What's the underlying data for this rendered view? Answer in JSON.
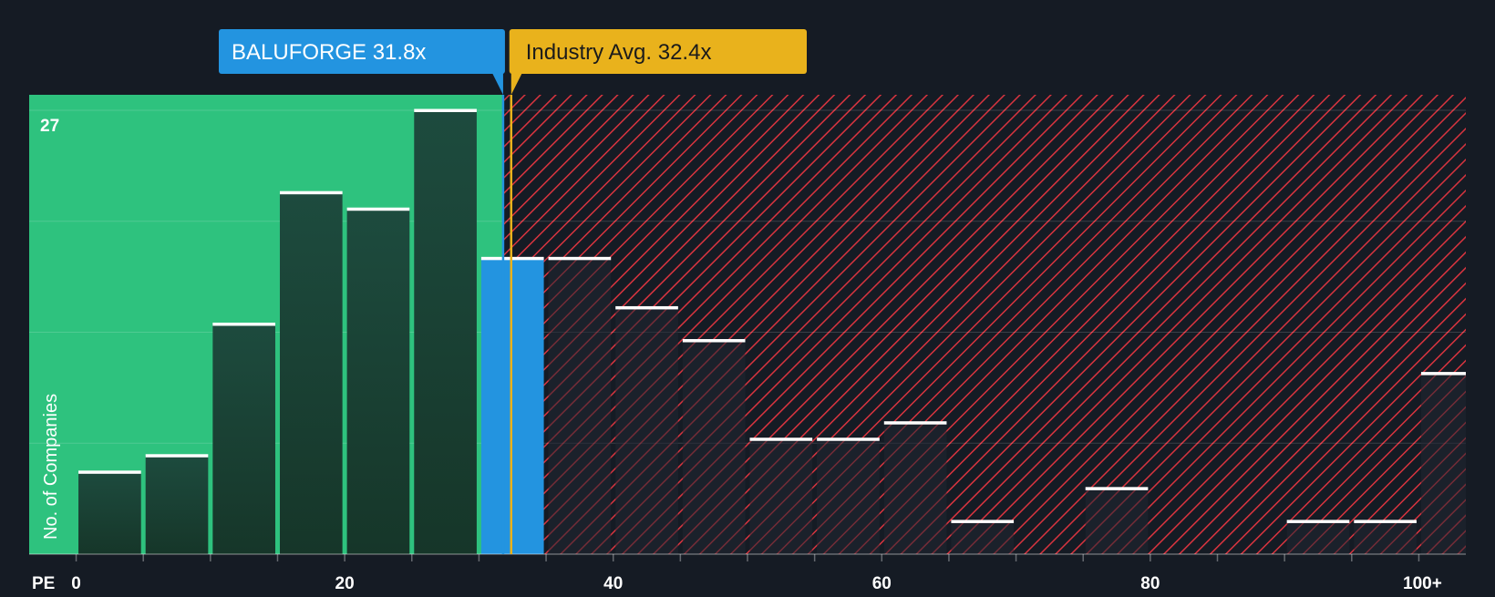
{
  "chart_data": {
    "type": "bar",
    "xlabel": "PE",
    "ylabel": "No. of Companies",
    "x_tick_labels": [
      "0",
      "20",
      "40",
      "60",
      "80",
      "100+"
    ],
    "x_ticks": [
      0,
      20,
      40,
      60,
      80,
      100
    ],
    "x_range": [
      -3.5,
      103.5
    ],
    "ylim": [
      0,
      27
    ],
    "y_tick_label": "27",
    "bin_width": 5,
    "bins": [
      {
        "start": 0,
        "value": 5
      },
      {
        "start": 5,
        "value": 6
      },
      {
        "start": 10,
        "value": 14
      },
      {
        "start": 15,
        "value": 22
      },
      {
        "start": 20,
        "value": 21
      },
      {
        "start": 25,
        "value": 27
      },
      {
        "start": 30,
        "value": 18,
        "highlight": true
      },
      {
        "start": 35,
        "value": 18
      },
      {
        "start": 40,
        "value": 15
      },
      {
        "start": 45,
        "value": 13
      },
      {
        "start": 50,
        "value": 7
      },
      {
        "start": 55,
        "value": 7
      },
      {
        "start": 60,
        "value": 8
      },
      {
        "start": 65,
        "value": 2
      },
      {
        "start": 70,
        "value": 0
      },
      {
        "start": 75,
        "value": 4
      },
      {
        "start": 80,
        "value": 0
      },
      {
        "start": 85,
        "value": 0
      },
      {
        "start": 90,
        "value": 2
      },
      {
        "start": 95,
        "value": 2
      },
      {
        "start": 100,
        "value": 11
      }
    ],
    "company": {
      "label": "BALUFORGE 31.8x",
      "value": 31.8
    },
    "industry": {
      "label": "Industry Avg. 32.4x",
      "value": 32.4
    },
    "grid": true
  },
  "colors": {
    "background": "#151b24",
    "undervalued_zone": "#2ec27e",
    "overvalued_zone": "#151b24",
    "hatch": "#d9343f",
    "bar_dark": "#1c4a3d",
    "bar_highlight": "#2394e0",
    "company_tag": "#2394e0",
    "industry_tag": "#e9b21c",
    "bar_top": "#ffffff",
    "axis_text": "#ffffff"
  }
}
